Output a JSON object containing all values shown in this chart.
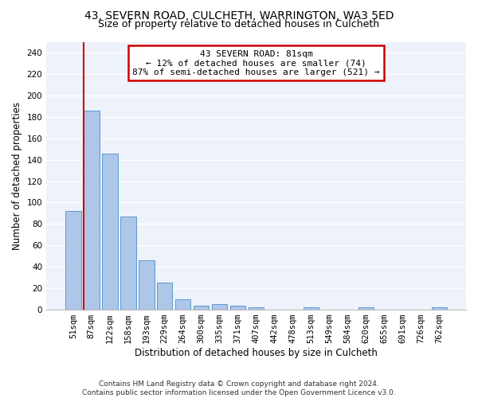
{
  "title_line1": "43, SEVERN ROAD, CULCHETH, WARRINGTON, WA3 5ED",
  "title_line2": "Size of property relative to detached houses in Culcheth",
  "xlabel": "Distribution of detached houses by size in Culcheth",
  "ylabel": "Number of detached properties",
  "categories": [
    "51sqm",
    "87sqm",
    "122sqm",
    "158sqm",
    "193sqm",
    "229sqm",
    "264sqm",
    "300sqm",
    "335sqm",
    "371sqm",
    "407sqm",
    "442sqm",
    "478sqm",
    "513sqm",
    "549sqm",
    "584sqm",
    "620sqm",
    "655sqm",
    "691sqm",
    "726sqm",
    "762sqm"
  ],
  "values": [
    92,
    186,
    146,
    87,
    46,
    25,
    10,
    4,
    5,
    4,
    2,
    0,
    0,
    2,
    0,
    0,
    2,
    0,
    0,
    0,
    2
  ],
  "bar_color": "#aec6e8",
  "bar_edge_color": "#5b9bd5",
  "highlight_line_color": "#cc0000",
  "annotation_line1": "43 SEVERN ROAD: 81sqm",
  "annotation_line2": "← 12% of detached houses are smaller (74)",
  "annotation_line3": "87% of semi-detached houses are larger (521) →",
  "annotation_box_color": "#ffffff",
  "annotation_box_edge": "#cc0000",
  "ylim": [
    0,
    250
  ],
  "yticks": [
    0,
    20,
    40,
    60,
    80,
    100,
    120,
    140,
    160,
    180,
    200,
    220,
    240
  ],
  "background_color": "#eef2fa",
  "grid_color": "#ffffff",
  "footer": "Contains HM Land Registry data © Crown copyright and database right 2024.\nContains public sector information licensed under the Open Government Licence v3.0.",
  "title_fontsize": 10,
  "subtitle_fontsize": 9,
  "axis_label_fontsize": 8.5,
  "tick_fontsize": 7.5,
  "annotation_fontsize": 8,
  "footer_fontsize": 6.5
}
